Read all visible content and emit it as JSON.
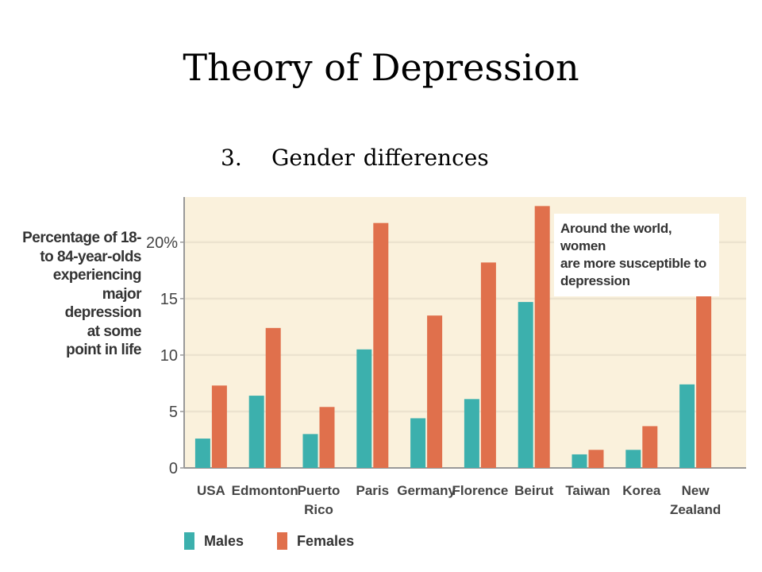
{
  "slide": {
    "title": "Theory of Depression",
    "subtitle_number": "3.",
    "subtitle_text": "Gender differences"
  },
  "chart_data": {
    "type": "bar",
    "ylabel": "Percentage of 18-\nto 84-year-olds\nexperiencing\nmajor\ndepression\nat some\npoint in life",
    "ylim": [
      0,
      24
    ],
    "yticks": [
      0,
      5,
      10,
      15,
      20
    ],
    "ytick_labels": [
      "0",
      "5",
      "10",
      "15",
      "20%"
    ],
    "categories": [
      "USA",
      "Edmonton",
      "Puerto\nRico",
      "Paris",
      "Germany",
      "Florence",
      "Beirut",
      "Taiwan",
      "Korea",
      "New\nZealand"
    ],
    "series": [
      {
        "name": "Males",
        "color": "#3cb0ad",
        "values": [
          2.6,
          6.4,
          3.0,
          10.5,
          4.4,
          6.1,
          14.7,
          1.2,
          1.6,
          7.4
        ]
      },
      {
        "name": "Females",
        "color": "#e0704c",
        "values": [
          7.3,
          12.4,
          5.4,
          21.7,
          13.5,
          18.2,
          23.2,
          1.6,
          3.7,
          15.5
        ]
      }
    ],
    "annotation": "Around the world, women\nare more susceptible to\ndepression",
    "grid": true,
    "legend_position": "bottom-left",
    "colors": {
      "background": "#faf1dc",
      "grid": "#ece3cf",
      "axis": "#999999"
    }
  }
}
